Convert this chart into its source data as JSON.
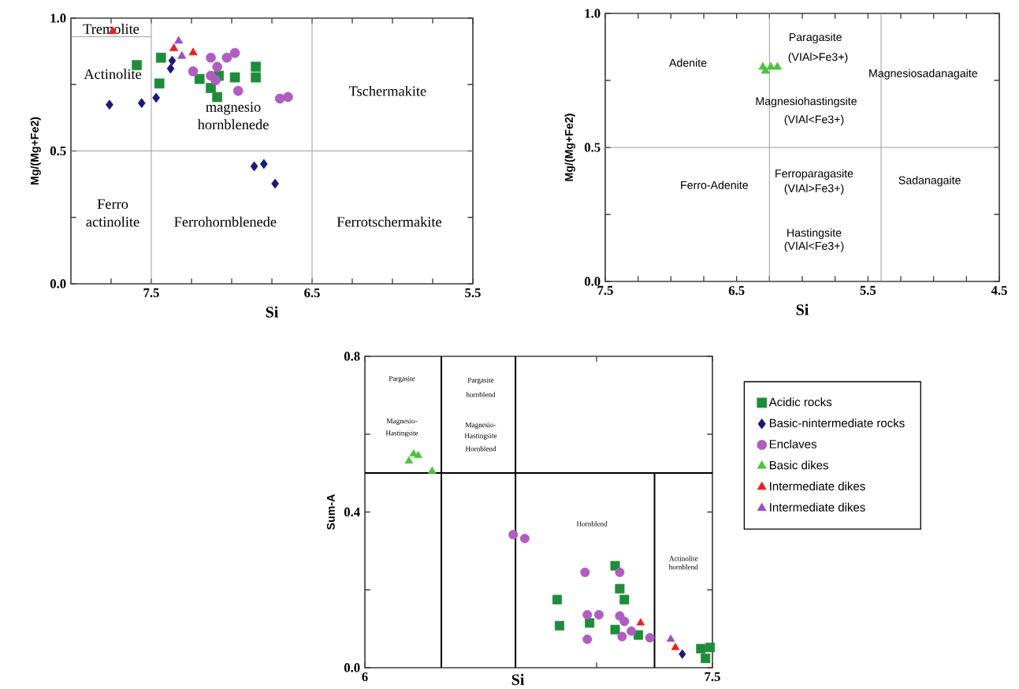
{
  "chart_data": [
    {
      "type": "scatter",
      "xlabel": "Si",
      "ylabel": "Mg/(Mg+Fe2)",
      "xlim": [
        8.0,
        5.5
      ],
      "ylim": [
        0,
        1
      ],
      "xticks": [
        {
          "value": 7.75,
          "label": null
        },
        {
          "value": 7.5,
          "label": "7.5"
        },
        {
          "value": 7.25,
          "label": null
        },
        {
          "value": 7.0,
          "label": null
        },
        {
          "value": 6.75,
          "label": null
        },
        {
          "value": 6.5,
          "label": "6.5"
        },
        {
          "value": 6.25,
          "label": null
        },
        {
          "value": 6.0,
          "label": null
        },
        {
          "value": 5.75,
          "label": null
        },
        {
          "value": 5.5,
          "label": "5.5"
        }
      ],
      "yticks": [
        {
          "value": 0,
          "label": "0.0"
        },
        {
          "value": 0.25,
          "label": null
        },
        {
          "value": 0.5,
          "label": "0.5"
        },
        {
          "value": 0.75,
          "label": null
        },
        {
          "value": 1.0,
          "label": "1.0"
        }
      ],
      "ref_lines": [
        {
          "axis": "x",
          "value": 7.5,
          "color": "#8c8c8c"
        },
        {
          "axis": "x",
          "value": 6.5,
          "color": "#8c8c8c"
        },
        {
          "axis": "y",
          "value": 0.5,
          "color": "#8c8c8c"
        }
      ],
      "series": [
        {
          "color": "#1e8c3a",
          "marker": "square",
          "x": [
            7.59,
            7.44,
            7.45,
            7.2,
            7.13,
            7.09,
            7.08,
            6.98,
            6.85,
            6.85
          ],
          "values": [
            0.823,
            0.851,
            0.754,
            0.771,
            0.737,
            0.703,
            0.783,
            0.777,
            0.817,
            0.777
          ]
        },
        {
          "color": "#1a1a7a",
          "marker": "diamond",
          "x": [
            7.76,
            7.56,
            7.47,
            7.38,
            7.37,
            6.86,
            6.8,
            6.73
          ],
          "values": [
            0.674,
            0.68,
            0.7,
            0.81,
            0.84,
            0.442,
            0.451,
            0.377
          ]
        },
        {
          "color": "#b05cc0",
          "marker": "circle",
          "x": [
            7.24,
            7.13,
            7.09,
            7.1,
            7.03,
            6.98,
            6.96,
            6.7,
            6.65,
            7.13
          ],
          "values": [
            0.8,
            0.851,
            0.817,
            0.766,
            0.851,
            0.869,
            0.726,
            0.697,
            0.703,
            0.783
          ]
        },
        {
          "color": "#e8231e",
          "marker": "triangle",
          "x": [
            7.74,
            7.36,
            7.24
          ],
          "values": [
            0.95,
            0.886,
            0.87
          ]
        },
        {
          "color": "#9b4fc0",
          "marker": "triangle",
          "x": [
            7.33,
            7.31
          ],
          "values": [
            0.914,
            0.857
          ]
        },
        {
          "type": "line",
          "color": "#8c8c8c",
          "x": [
            8.0,
            7.5
          ],
          "values": [
            0.93,
            0.93
          ]
        }
      ],
      "annotations": [
        "Tremolite",
        "Actinolite",
        "magnesio",
        "hornblenede",
        "Tschermakite",
        "Ferro",
        "actinolite",
        "Ferrohornblenede",
        "Ferrotschermakite"
      ]
    },
    {
      "type": "scatter",
      "xlabel": "Si",
      "ylabel": "Mg/(Mg+Fe2)",
      "xlim": [
        7.5,
        4.5
      ],
      "ylim": [
        0,
        1
      ],
      "xticks": [
        {
          "value": 7.5,
          "label": "7.5"
        },
        {
          "value": 7.25,
          "label": null
        },
        {
          "value": 7.0,
          "label": null
        },
        {
          "value": 6.75,
          "label": null
        },
        {
          "value": 6.5,
          "label": "6.5"
        },
        {
          "value": 6.25,
          "label": null
        },
        {
          "value": 6.0,
          "label": null
        },
        {
          "value": 5.75,
          "label": null
        },
        {
          "value": 5.5,
          "label": "5.5"
        },
        {
          "value": 5.25,
          "label": null
        },
        {
          "value": 5.0,
          "label": null
        },
        {
          "value": 4.75,
          "label": null
        },
        {
          "value": 4.5,
          "label": "4.5"
        }
      ],
      "yticks": [
        {
          "value": 0,
          "label": "0.0"
        },
        {
          "value": 0.25,
          "label": null
        },
        {
          "value": 0.5,
          "label": "0.5"
        },
        {
          "value": 0.75,
          "label": null
        },
        {
          "value": 1.0,
          "label": "1.0"
        }
      ],
      "ref_lines": [
        {
          "axis": "x",
          "value": 6.25,
          "color": "#8c8c8c"
        },
        {
          "axis": "x",
          "value": 5.4,
          "color": "#8c8c8c"
        },
        {
          "axis": "y",
          "value": 0.5,
          "color": "#8c8c8c"
        }
      ],
      "series": [
        {
          "color": "#4cc43a",
          "marker": "triangle",
          "x": [
            6.3,
            6.24,
            6.19,
            6.28
          ],
          "values": [
            0.8,
            0.8,
            0.8,
            0.785
          ]
        }
      ],
      "annotations": [
        "Adenite",
        "Paragasite",
        "(VIAl>Fe3+)",
        "Magnesiosadanagaite",
        "Magnesiohastingsite",
        "(VIAl<Fe3+)",
        "Ferro-Adenite",
        "Ferroparagasite",
        "(VIAl>Fe3+)",
        "Sadanagaite",
        "Hastingsite",
        "(VIAl<Fe3+)"
      ]
    },
    {
      "type": "scatter",
      "xlabel": "Si",
      "ylabel": "Sum-A",
      "xlim": [
        6,
        7.5
      ],
      "ylim": [
        0,
        0.8
      ],
      "legend": "right",
      "xticks": [
        {
          "value": 6,
          "label": "6"
        },
        {
          "value": 7.0,
          "label": null
        },
        {
          "value": 7.5,
          "label": "7.5"
        }
      ],
      "yticks": [
        {
          "value": 0,
          "label": "0.0"
        },
        {
          "value": 0.2,
          "label": null
        },
        {
          "value": 0.4,
          "label": "0.4"
        },
        {
          "value": 0.6,
          "label": null
        },
        {
          "value": 0.8,
          "label": "0.8"
        }
      ],
      "ref_lines": [
        {
          "axis": "x",
          "value": 6.33,
          "color": "#000000"
        },
        {
          "axis": "x",
          "value": 6.65,
          "color": "#000000"
        },
        {
          "axis": "y",
          "value": 0.5,
          "color": "#000000"
        }
      ],
      "series": [
        {
          "name": "Acidic rocks",
          "color": "#1e8c3a",
          "marker": "square",
          "x": [
            6.83,
            6.84,
            6.97,
            7.08,
            7.1,
            7.12,
            7.08,
            7.18,
            7.45,
            7.47,
            7.49
          ],
          "values": [
            0.175,
            0.108,
            0.115,
            0.262,
            0.203,
            0.175,
            0.098,
            0.084,
            0.049,
            0.024,
            0.052
          ]
        },
        {
          "name": "Basic-nintermediate rocks",
          "color": "#1a1a7a",
          "marker": "diamond",
          "x": [
            7.37
          ],
          "values": [
            0.035
          ]
        },
        {
          "name": "Enclaves",
          "color": "#b05cc0",
          "marker": "circle",
          "x": [
            6.64,
            6.69,
            6.95,
            7.1,
            6.96,
            7.01,
            6.96,
            7.1,
            7.12,
            7.11,
            7.15,
            7.23
          ],
          "values": [
            0.342,
            0.332,
            0.245,
            0.245,
            0.136,
            0.136,
            0.073,
            0.133,
            0.119,
            0.08,
            0.094,
            0.077
          ]
        },
        {
          "name": "Basic dikes",
          "color": "#4cc43a",
          "marker": "triangle",
          "x": [
            6.21,
            6.19,
            6.23,
            6.29
          ],
          "values": [
            0.549,
            0.531,
            0.545,
            0.505
          ]
        },
        {
          "name": "Intermediate dikes",
          "color": "#e8231e",
          "marker": "triangle",
          "x": [
            7.19,
            7.34
          ],
          "values": [
            0.115,
            0.052
          ]
        },
        {
          "name": "Intermediate dikes",
          "color": "#9b4fc0",
          "marker": "triangle",
          "x": [
            7.32
          ],
          "values": [
            0.073
          ]
        },
        {
          "type": "line",
          "color": "#000000",
          "x": [
            7.25,
            7.25
          ],
          "values": [
            0,
            0.5
          ]
        }
      ],
      "annotations": [
        "Pargasite",
        "Pargasite",
        "hornblend",
        "Magnesio-",
        "Hastingsite",
        "Magnesio-",
        "Hastingsite",
        "Hornblend",
        "Hornblend",
        "Actinolite hornblend"
      ]
    }
  ]
}
